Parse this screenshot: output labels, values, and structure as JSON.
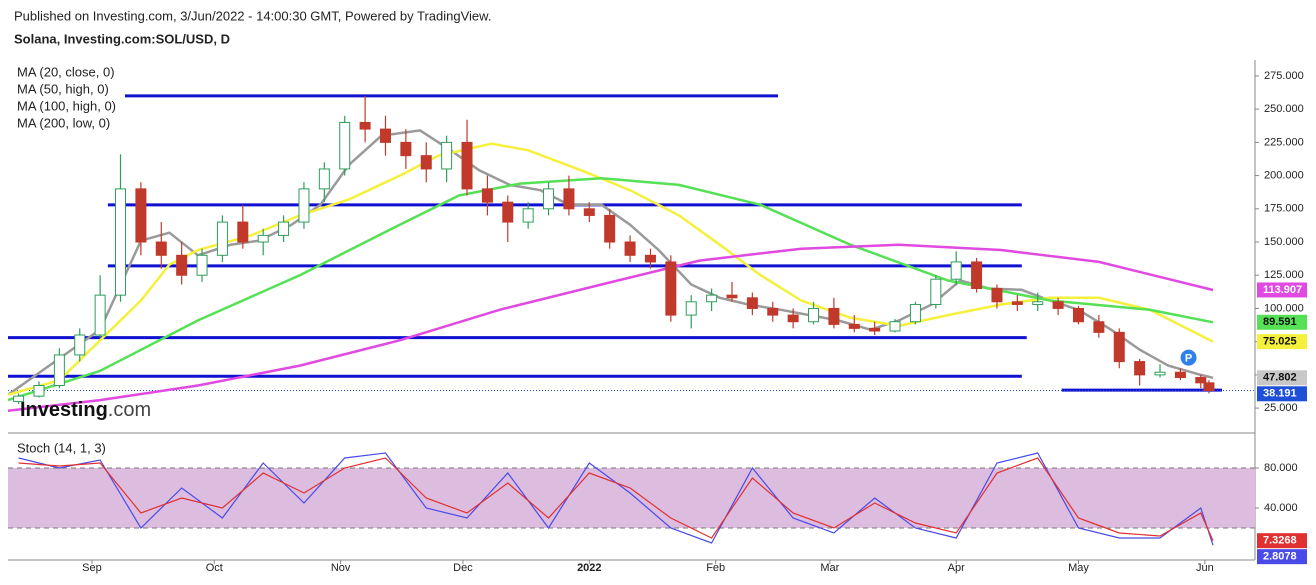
{
  "header": {
    "published": "Published on Investing.com, 3/Jun/2022 - 14:00:30 GMT, Powered by TradingView.",
    "symbol": "Solana, Investing.com:SOL/USD, D"
  },
  "logo": {
    "brand": "Investing",
    "suffix": ".com"
  },
  "chart_data": [
    {
      "type": "candlestick",
      "xlim": [
        -20.6,
        285.3
      ],
      "xticks": [
        {
          "value": 0,
          "label": "Sep"
        },
        {
          "value": 30,
          "label": "Oct"
        },
        {
          "value": 61,
          "label": "Nov"
        },
        {
          "value": 91,
          "label": "Dec"
        },
        {
          "value": 122,
          "label": "2022"
        },
        {
          "value": 153,
          "label": "Feb"
        },
        {
          "value": 181,
          "label": "Mar"
        },
        {
          "value": 212,
          "label": "Apr"
        },
        {
          "value": 242,
          "label": "May"
        },
        {
          "value": 273,
          "label": "Jun"
        }
      ],
      "ylim": [
        7,
        287
      ],
      "yticks": [
        {
          "value": 25,
          "label": "25.000"
        },
        {
          "value": 50,
          "label": "50.000"
        },
        {
          "value": 75,
          "label": "75.000"
        },
        {
          "value": 100,
          "label": "100.000"
        },
        {
          "value": 125,
          "label": "125.000"
        },
        {
          "value": 150,
          "label": "150.000"
        },
        {
          "value": 175,
          "label": "175.000"
        },
        {
          "value": 200,
          "label": "200.000"
        },
        {
          "value": 225,
          "label": "225.000"
        },
        {
          "value": 250,
          "label": "250.000"
        },
        {
          "value": 275,
          "label": "275.000"
        }
      ],
      "up_color": "#2e9e5b",
      "down_color": "#c0392b",
      "candles": {
        "x": [
          -18,
          -13,
          -8,
          -3,
          2,
          7,
          12,
          17,
          22,
          27,
          32,
          37,
          42,
          47,
          52,
          57,
          62,
          67,
          72,
          77,
          82,
          87,
          92,
          97,
          102,
          107,
          112,
          117,
          122,
          127,
          132,
          137,
          142,
          147,
          152,
          157,
          162,
          167,
          172,
          177,
          182,
          187,
          192,
          197,
          202,
          207,
          212,
          217,
          222,
          227,
          232,
          237,
          242,
          247,
          252,
          257,
          262,
          267,
          272,
          274
        ],
        "open": [
          30,
          34,
          42,
          65,
          80,
          110,
          190,
          150,
          140,
          125,
          140,
          165,
          150,
          155,
          165,
          190,
          205,
          240,
          235,
          225,
          215,
          205,
          225,
          190,
          180,
          165,
          175,
          190,
          175,
          170,
          150,
          140,
          135,
          95,
          105,
          110,
          108,
          100,
          95,
          90,
          100,
          88,
          85,
          83,
          90,
          103,
          122,
          135,
          115,
          105,
          103,
          105,
          100,
          90,
          82,
          60,
          50,
          52,
          48,
          44
        ],
        "high": [
          36,
          45,
          70,
          85,
          125,
          216,
          195,
          165,
          150,
          145,
          170,
          178,
          160,
          170,
          195,
          210,
          245,
          260,
          245,
          235,
          225,
          230,
          242,
          200,
          185,
          180,
          195,
          200,
          180,
          175,
          155,
          145,
          140,
          110,
          115,
          120,
          112,
          105,
          100,
          105,
          108,
          95,
          90,
          92,
          105,
          125,
          143,
          138,
          118,
          110,
          112,
          108,
          102,
          95,
          85,
          62,
          58,
          55,
          50,
          46
        ],
        "low": [
          28,
          33,
          40,
          60,
          78,
          105,
          140,
          130,
          118,
          120,
          135,
          145,
          140,
          150,
          160,
          180,
          200,
          225,
          215,
          205,
          195,
          195,
          185,
          170,
          150,
          160,
          170,
          170,
          165,
          145,
          135,
          130,
          90,
          85,
          98,
          105,
          95,
          90,
          85,
          88,
          85,
          82,
          80,
          82,
          88,
          100,
          118,
          112,
          100,
          98,
          98,
          95,
          88,
          78,
          55,
          42,
          48,
          46,
          40,
          36
        ],
        "close": [
          34,
          42,
          65,
          80,
          110,
          190,
          150,
          140,
          125,
          140,
          165,
          150,
          155,
          165,
          190,
          205,
          240,
          235,
          225,
          215,
          205,
          225,
          190,
          180,
          165,
          175,
          190,
          175,
          170,
          150,
          140,
          135,
          95,
          105,
          110,
          108,
          100,
          95,
          90,
          100,
          88,
          85,
          83,
          90,
          103,
          122,
          135,
          115,
          105,
          103,
          105,
          100,
          90,
          82,
          60,
          50,
          52,
          48,
          44,
          38.191
        ]
      },
      "series": [
        {
          "name": "MA (20, close, 0)",
          "color": "#9a9a9a",
          "last": 47.802,
          "x": [
            -20.6,
            2,
            12,
            19,
            26,
            34,
            41,
            49,
            56,
            63,
            71,
            80.5,
            88,
            95,
            102.5,
            110,
            117,
            125,
            132,
            139,
            147,
            154,
            161,
            169,
            176,
            183,
            191,
            198,
            206,
            213,
            220,
            228,
            235,
            242,
            250,
            257,
            264,
            272,
            275
          ],
          "values": [
            35,
            84,
            151,
            157,
            140,
            148,
            151,
            163,
            178,
            208,
            230,
            234,
            219,
            204,
            193,
            189,
            178,
            178,
            163,
            144,
            118,
            108,
            103,
            99,
            95,
            91,
            84,
            91,
            103,
            121,
            115,
            114,
            106,
            99,
            84,
            69,
            57,
            50,
            47.802
          ]
        },
        {
          "name": "MA (50, high, 0)",
          "color": "#f4f03c",
          "last": 75.025,
          "x": [
            -20.6,
            -8,
            2,
            12,
            19,
            26,
            39,
            51,
            63,
            75.5,
            85,
            98,
            107,
            120,
            132,
            144,
            154,
            164,
            174,
            186,
            198,
            210,
            223,
            235,
            247,
            259.5,
            275
          ],
          "values": [
            35,
            46,
            76,
            106,
            133,
            144,
            155,
            170,
            182,
            200,
            215,
            224,
            219,
            204,
            189,
            170,
            148,
            125,
            106,
            93,
            87,
            95,
            103,
            108,
            108,
            99,
            75.025
          ]
        },
        {
          "name": "MA (100, high, 0)",
          "color": "#55e055",
          "last": 89.591,
          "x": [
            -20.6,
            2,
            26,
            51,
            75.5,
            90,
            105,
            125,
            144,
            164,
            186,
            210,
            235,
            259.5,
            275
          ],
          "values": [
            31,
            53,
            91,
            125,
            163,
            185,
            194,
            198,
            193,
            178,
            148,
            121,
            106,
            99,
            89.591
          ]
        },
        {
          "name": "MA (200, low, 0)",
          "color": "#e04ae0",
          "last": 113.907,
          "x": [
            -20.6,
            2,
            26,
            51,
            75.5,
            100,
            125,
            149,
            174,
            198,
            223,
            247,
            275
          ],
          "values": [
            23,
            31,
            42,
            57,
            76,
            99,
            118,
            136,
            145,
            148,
            144,
            135,
            113.907
          ]
        }
      ],
      "price": {
        "value": 38.191,
        "color": "#1d4fd8"
      },
      "levels": [
        {
          "value": 260,
          "x": [
            8.1,
            168.3
          ]
        },
        {
          "value": 178,
          "x": [
            3.9,
            228.1
          ]
        },
        {
          "value": 132,
          "x": [
            3.9,
            228.1
          ]
        },
        {
          "value": 78,
          "x": [
            -20.6,
            229.3
          ]
        },
        {
          "value": 49,
          "x": [
            -20.6,
            228.1
          ]
        },
        {
          "value": 38.5,
          "x": [
            237.9,
            277.2
          ]
        }
      ],
      "level_color": "#1010d0",
      "marker": {
        "label": "P",
        "x": 269,
        "value": 63
      }
    },
    {
      "type": "stochastic",
      "title": "Stoch (14, 1, 3)",
      "ylim": [
        -12,
        111
      ],
      "yticks": [
        {
          "value": 40,
          "label": "40.000"
        },
        {
          "value": 80,
          "label": "80.000"
        }
      ],
      "band": [
        20,
        80
      ],
      "x": [
        -18,
        -8,
        2,
        12,
        22,
        32,
        42,
        52,
        62,
        72,
        82,
        92,
        102,
        112,
        122,
        132,
        142,
        152,
        162,
        172,
        182,
        192,
        202,
        212,
        222,
        232,
        242,
        252,
        262,
        272,
        275
      ],
      "series": [
        {
          "name": "%K",
          "color": "#4a4ae8",
          "values": [
            90,
            80,
            88,
            20,
            60,
            30,
            85,
            45,
            90,
            95,
            40,
            30,
            75,
            20,
            85,
            55,
            20,
            5,
            80,
            30,
            15,
            50,
            20,
            10,
            85,
            95,
            20,
            10,
            10,
            40,
            2.8078
          ]
        },
        {
          "name": "%D",
          "color": "#e03030",
          "values": [
            85,
            82,
            85,
            35,
            50,
            40,
            75,
            55,
            80,
            90,
            50,
            35,
            65,
            30,
            75,
            60,
            30,
            10,
            70,
            35,
            20,
            45,
            25,
            15,
            75,
            90,
            30,
            15,
            12,
            35,
            7.3268
          ]
        }
      ]
    }
  ]
}
